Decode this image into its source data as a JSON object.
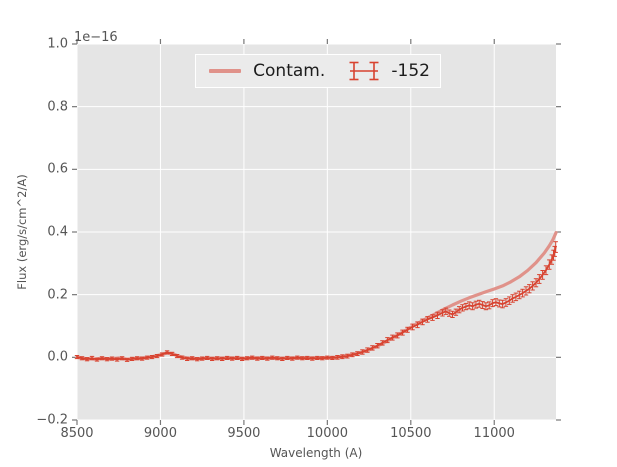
{
  "figure": {
    "background": "#ffffff",
    "plot_bg": "#e5e5e5",
    "grid_color": "#ffffff",
    "tick_color": "#777777",
    "text_color": "#555555"
  },
  "legend": {
    "items": [
      {
        "label": "Contam.",
        "glyph": "line",
        "color": "#e0928a"
      },
      {
        "label": "-152",
        "glyph": "errorbar",
        "color": "#d84330"
      }
    ]
  },
  "chart_data": {
    "type": "line",
    "title": "",
    "xlabel": "Wavelength (A)",
    "ylabel": "Flux (erg/s/cm^2/A)",
    "offset_text": "1e−16",
    "xlim": [
      8500,
      11370
    ],
    "ylim": [
      -0.2,
      1.0
    ],
    "xticks": [
      8500,
      9000,
      9500,
      10000,
      10500,
      11000
    ],
    "xtick_labels": [
      "8500",
      "9000",
      "9500",
      "10000",
      "10500",
      "11000"
    ],
    "yticks": [
      -0.2,
      0.0,
      0.2,
      0.4,
      0.6,
      0.8,
      1.0
    ],
    "ytick_labels": [
      "−0.2",
      "0.0",
      "0.2",
      "0.4",
      "0.6",
      "0.8",
      "1.0"
    ],
    "grid": true,
    "legend_position": "upper center",
    "series": [
      {
        "name": "Contam.",
        "type": "line",
        "color": "#e0928a",
        "linewidth": 3.2,
        "points": [
          [
            8500,
            0.0
          ],
          [
            8550,
            -0.004
          ],
          [
            8600,
            -0.006
          ],
          [
            8650,
            -0.003
          ],
          [
            8700,
            -0.005
          ],
          [
            8750,
            -0.002
          ],
          [
            8800,
            -0.006
          ],
          [
            8850,
            -0.004
          ],
          [
            8900,
            -0.002
          ],
          [
            8950,
            0.002
          ],
          [
            9000,
            0.008
          ],
          [
            9040,
            0.014
          ],
          [
            9080,
            0.01
          ],
          [
            9120,
            0.002
          ],
          [
            9160,
            -0.002
          ],
          [
            9200,
            -0.004
          ],
          [
            9300,
            -0.003
          ],
          [
            9400,
            -0.002
          ],
          [
            9500,
            -0.003
          ],
          [
            9600,
            -0.002
          ],
          [
            9700,
            -0.003
          ],
          [
            9800,
            -0.002
          ],
          [
            9900,
            -0.002
          ],
          [
            10000,
            -0.001
          ],
          [
            10050,
            0.0
          ],
          [
            10100,
            0.003
          ],
          [
            10150,
            0.008
          ],
          [
            10200,
            0.015
          ],
          [
            10250,
            0.024
          ],
          [
            10300,
            0.036
          ],
          [
            10350,
            0.05
          ],
          [
            10400,
            0.065
          ],
          [
            10450,
            0.08
          ],
          [
            10500,
            0.096
          ],
          [
            10550,
            0.111
          ],
          [
            10600,
            0.126
          ],
          [
            10650,
            0.14
          ],
          [
            10700,
            0.154
          ],
          [
            10750,
            0.167
          ],
          [
            10800,
            0.179
          ],
          [
            10850,
            0.19
          ],
          [
            10900,
            0.2
          ],
          [
            10950,
            0.209
          ],
          [
            11000,
            0.218
          ],
          [
            11050,
            0.228
          ],
          [
            11100,
            0.241
          ],
          [
            11150,
            0.257
          ],
          [
            11200,
            0.277
          ],
          [
            11250,
            0.302
          ],
          [
            11300,
            0.333
          ],
          [
            11330,
            0.356
          ],
          [
            11350,
            0.374
          ],
          [
            11365,
            0.392
          ],
          [
            11370,
            0.398
          ]
        ]
      },
      {
        "name": "-152",
        "type": "errorbar",
        "color": "#d84330",
        "linewidth": 1.8,
        "points": [
          [
            8500,
            0.001,
            0.005
          ],
          [
            8530,
            -0.003,
            0.005
          ],
          [
            8560,
            -0.006,
            0.005
          ],
          [
            8590,
            -0.002,
            0.005
          ],
          [
            8620,
            -0.007,
            0.005
          ],
          [
            8650,
            -0.003,
            0.005
          ],
          [
            8680,
            -0.006,
            0.005
          ],
          [
            8710,
            -0.004,
            0.005
          ],
          [
            8740,
            -0.007,
            0.005
          ],
          [
            8770,
            -0.003,
            0.005
          ],
          [
            8800,
            -0.008,
            0.005
          ],
          [
            8830,
            -0.005,
            0.005
          ],
          [
            8860,
            -0.003,
            0.005
          ],
          [
            8890,
            -0.004,
            0.005
          ],
          [
            8920,
            -0.001,
            0.005
          ],
          [
            8950,
            0.001,
            0.005
          ],
          [
            8980,
            0.004,
            0.005
          ],
          [
            9010,
            0.009,
            0.005
          ],
          [
            9040,
            0.016,
            0.005
          ],
          [
            9070,
            0.011,
            0.005
          ],
          [
            9100,
            0.004,
            0.005
          ],
          [
            9130,
            -0.001,
            0.005
          ],
          [
            9160,
            -0.005,
            0.005
          ],
          [
            9190,
            -0.003,
            0.005
          ],
          [
            9220,
            -0.006,
            0.005
          ],
          [
            9250,
            -0.004,
            0.005
          ],
          [
            9280,
            -0.002,
            0.005
          ],
          [
            9310,
            -0.005,
            0.005
          ],
          [
            9340,
            -0.003,
            0.005
          ],
          [
            9370,
            -0.005,
            0.005
          ],
          [
            9400,
            -0.002,
            0.005
          ],
          [
            9430,
            -0.004,
            0.005
          ],
          [
            9460,
            -0.002,
            0.005
          ],
          [
            9490,
            -0.005,
            0.005
          ],
          [
            9520,
            -0.003,
            0.005
          ],
          [
            9550,
            -0.001,
            0.005
          ],
          [
            9580,
            -0.004,
            0.005
          ],
          [
            9610,
            -0.002,
            0.005
          ],
          [
            9640,
            -0.004,
            0.005
          ],
          [
            9670,
            -0.001,
            0.005
          ],
          [
            9700,
            -0.003,
            0.005
          ],
          [
            9730,
            -0.005,
            0.005
          ],
          [
            9760,
            -0.002,
            0.005
          ],
          [
            9790,
            -0.004,
            0.005
          ],
          [
            9820,
            -0.001,
            0.005
          ],
          [
            9850,
            -0.003,
            0.005
          ],
          [
            9880,
            -0.002,
            0.005
          ],
          [
            9910,
            -0.004,
            0.005
          ],
          [
            9940,
            -0.002,
            0.005
          ],
          [
            9970,
            -0.003,
            0.005
          ],
          [
            10000,
            -0.001,
            0.005
          ],
          [
            10030,
            -0.002,
            0.005
          ],
          [
            10060,
            0.0,
            0.006
          ],
          [
            10090,
            0.002,
            0.006
          ],
          [
            10120,
            0.004,
            0.006
          ],
          [
            10150,
            0.008,
            0.006
          ],
          [
            10180,
            0.012,
            0.006
          ],
          [
            10210,
            0.017,
            0.007
          ],
          [
            10240,
            0.023,
            0.007
          ],
          [
            10270,
            0.03,
            0.007
          ],
          [
            10300,
            0.037,
            0.007
          ],
          [
            10330,
            0.046,
            0.007
          ],
          [
            10360,
            0.055,
            0.008
          ],
          [
            10390,
            0.063,
            0.008
          ],
          [
            10420,
            0.07,
            0.008
          ],
          [
            10450,
            0.079,
            0.008
          ],
          [
            10480,
            0.088,
            0.008
          ],
          [
            10510,
            0.097,
            0.009
          ],
          [
            10540,
            0.104,
            0.009
          ],
          [
            10570,
            0.113,
            0.009
          ],
          [
            10600,
            0.121,
            0.009
          ],
          [
            10630,
            0.127,
            0.009
          ],
          [
            10660,
            0.134,
            0.01
          ],
          [
            10690,
            0.142,
            0.01
          ],
          [
            10710,
            0.147,
            0.01
          ],
          [
            10730,
            0.141,
            0.01
          ],
          [
            10750,
            0.137,
            0.01
          ],
          [
            10770,
            0.144,
            0.01
          ],
          [
            10790,
            0.152,
            0.01
          ],
          [
            10810,
            0.158,
            0.01
          ],
          [
            10830,
            0.162,
            0.01
          ],
          [
            10850,
            0.166,
            0.011
          ],
          [
            10870,
            0.163,
            0.011
          ],
          [
            10890,
            0.168,
            0.011
          ],
          [
            10910,
            0.171,
            0.011
          ],
          [
            10930,
            0.167,
            0.011
          ],
          [
            10950,
            0.163,
            0.011
          ],
          [
            10970,
            0.166,
            0.011
          ],
          [
            10990,
            0.173,
            0.011
          ],
          [
            11010,
            0.176,
            0.011
          ],
          [
            11030,
            0.172,
            0.011
          ],
          [
            11050,
            0.17,
            0.012
          ],
          [
            11070,
            0.175,
            0.012
          ],
          [
            11090,
            0.181,
            0.012
          ],
          [
            11110,
            0.188,
            0.012
          ],
          [
            11130,
            0.193,
            0.012
          ],
          [
            11150,
            0.199,
            0.012
          ],
          [
            11170,
            0.205,
            0.012
          ],
          [
            11190,
            0.212,
            0.013
          ],
          [
            11210,
            0.219,
            0.013
          ],
          [
            11230,
            0.228,
            0.013
          ],
          [
            11250,
            0.238,
            0.013
          ],
          [
            11270,
            0.25,
            0.014
          ],
          [
            11290,
            0.263,
            0.014
          ],
          [
            11310,
            0.278,
            0.014
          ],
          [
            11330,
            0.296,
            0.015
          ],
          [
            11345,
            0.312,
            0.015
          ],
          [
            11355,
            0.326,
            0.016
          ],
          [
            11362,
            0.338,
            0.016
          ],
          [
            11368,
            0.352,
            0.017
          ]
        ]
      }
    ]
  }
}
